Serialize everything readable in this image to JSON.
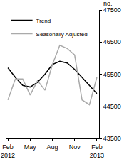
{
  "chart_data": {
    "type": "line",
    "y_label": "no.",
    "categories": [
      "Feb 2012",
      null,
      null,
      "May",
      null,
      null,
      "Aug",
      null,
      null,
      "Nov",
      null,
      null,
      "Feb 2013"
    ],
    "series": [
      {
        "name": "Trend",
        "color": "#000000",
        "values": [
          45700,
          45400,
          45150,
          45100,
          45250,
          45500,
          45800,
          45900,
          45850,
          45650,
          45400,
          45150,
          44900
        ]
      },
      {
        "name": "Seasonally Adjusted",
        "color": "#aaaaaa",
        "values": [
          44700,
          45350,
          45350,
          44850,
          45300,
          45000,
          45800,
          46400,
          46300,
          46100,
          44700,
          44550,
          45400
        ]
      }
    ],
    "ylim": [
      43500,
      47500
    ],
    "yticks": [
      43500,
      44500,
      45500,
      46500,
      47500
    ],
    "grid": false,
    "legend": "top left"
  }
}
